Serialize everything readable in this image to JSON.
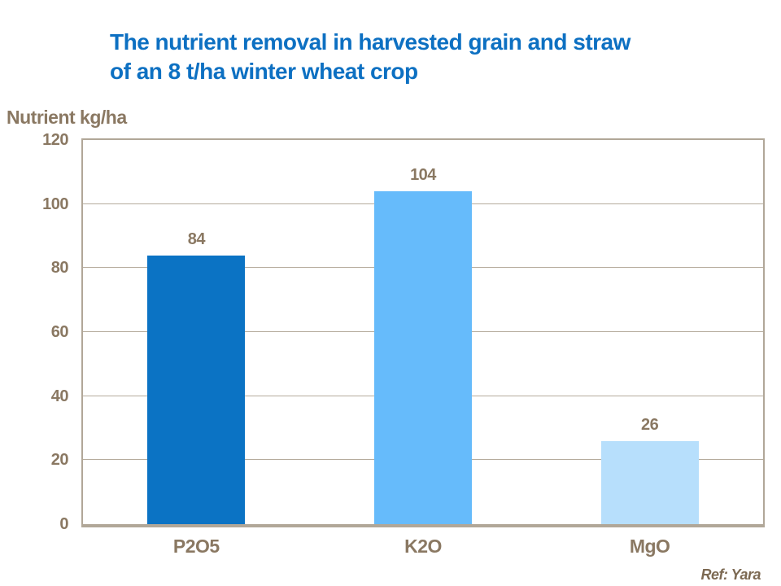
{
  "title": {
    "line1": "The nutrient removal in harvested grain and straw",
    "line2": "of an 8 t/ha winter wheat crop"
  },
  "y_axis_title": "Nutrient kg/ha",
  "reference": "Ref: Yara",
  "colors": {
    "title_blue": "#0d70c2",
    "axis_text_brown": "#8a7862",
    "frame_tan": "#b1a798",
    "gridline_tan": "#b5ab9c",
    "ref_brown": "#7c6952"
  },
  "chart_data": {
    "type": "bar",
    "categories": [
      "P2O5",
      "K2O",
      "MgO"
    ],
    "values": [
      84,
      104,
      26
    ],
    "bar_colors": [
      "#0b73c4",
      "#66bbfb",
      "#b7dffc"
    ],
    "title": "The nutrient removal in harvested grain and straw of an 8 t/ha winter wheat crop",
    "xlabel": "",
    "ylabel": "Nutrient kg/ha",
    "ylim": [
      0,
      120
    ],
    "yticks": [
      0,
      20,
      40,
      60,
      80,
      100,
      120
    ],
    "grid": true,
    "legend": false,
    "value_labels": true,
    "annotations": [
      "Ref: Yara"
    ]
  }
}
